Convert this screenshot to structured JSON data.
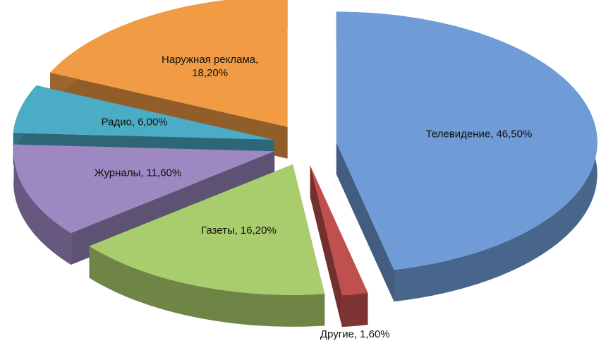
{
  "chart_data": {
    "type": "pie3d",
    "categories": [
      "Телевидение",
      "Другие",
      "Газеты",
      "Журналы",
      "Радио",
      "Наружная реклама"
    ],
    "values": [
      46.5,
      1.6,
      16.2,
      11.6,
      6.0,
      18.2
    ],
    "value_labels": [
      "46,50%",
      "1,60%",
      "16,20%",
      "11,60%",
      "6,00%",
      "18,20%"
    ],
    "colors": [
      "#6f9bd6",
      "#c0504d",
      "#a9cc6c",
      "#9d88c2",
      "#4bacc6",
      "#f29b45"
    ]
  }
}
